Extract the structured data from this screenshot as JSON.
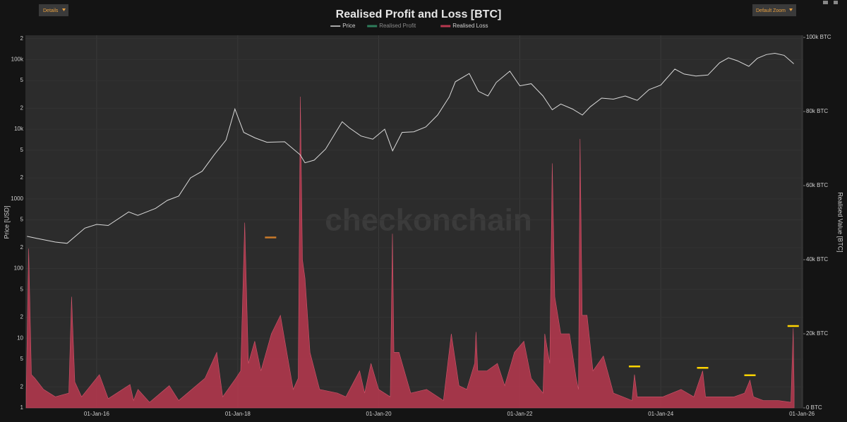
{
  "chart_data": {
    "type": "line",
    "title": "Realised Profit and Loss [BTC]",
    "buttons": [
      "Details",
      "Default Zoom"
    ],
    "watermark": "checkonchain",
    "ylabel": "Price [USD]",
    "y2label": "Realised Value [BTC]",
    "ylog": true,
    "grid": true,
    "legend": "top",
    "xlim": [
      "2014-12-28",
      "2026-01-08"
    ],
    "xticks": [
      {
        "value": "2016-01-01",
        "label": "01-Jan-16"
      },
      {
        "value": "2018-01-01",
        "label": "01-Jan-18"
      },
      {
        "value": "2020-01-01",
        "label": "01-Jan-20"
      },
      {
        "value": "2022-01-01",
        "label": "01-Jan-22"
      },
      {
        "value": "2024-01-01",
        "label": "01-Jan-24"
      },
      {
        "value": "2026-01-01",
        "label": "01-Jan-26"
      }
    ],
    "ylim": [
      1,
      208000
    ],
    "yticks": [
      1,
      2,
      5,
      10,
      {
        "value": 20,
        "label": "2"
      },
      {
        "value": 50,
        "label": "5"
      },
      100,
      {
        "value": 200,
        "label": "2"
      },
      {
        "value": 500,
        "label": "5"
      },
      1000,
      {
        "value": 2000,
        "label": "2"
      },
      {
        "value": 5000,
        "label": "5"
      },
      {
        "value": 10000,
        "label": "10k"
      },
      {
        "value": 20000,
        "label": "2"
      },
      {
        "value": 50000,
        "label": "5"
      },
      {
        "value": 100000,
        "label": "100k"
      },
      {
        "value": 200000,
        "label": "2"
      }
    ],
    "y2lim": [
      0,
      100000
    ],
    "y2ticks": [
      {
        "value": 0,
        "label": "0 BTC"
      },
      {
        "value": 20000,
        "label": "20k BTC"
      },
      {
        "value": 40000,
        "label": "40k BTC"
      },
      {
        "value": 60000,
        "label": "60k BTC"
      },
      {
        "value": 80000,
        "label": "80k BTC"
      },
      {
        "value": 100000,
        "label": "100k BTC"
      }
    ],
    "series": [
      {
        "name": "Price",
        "color": "#d9d9d9",
        "type": "line",
        "x": [
          "2015-01-05",
          "2015-03-01",
          "2015-06-01",
          "2015-08-01",
          "2015-11-01",
          "2016-01-01",
          "2016-03-01",
          "2016-06-15",
          "2016-08-01",
          "2016-11-01",
          "2017-01-01",
          "2017-03-01",
          "2017-05-01",
          "2017-07-01",
          "2017-09-01",
          "2017-11-01",
          "2017-12-17",
          "2018-02-01",
          "2018-04-01",
          "2018-06-01",
          "2018-09-01",
          "2018-11-20",
          "2018-12-15",
          "2019-02-01",
          "2019-04-01",
          "2019-06-26",
          "2019-08-01",
          "2019-10-01",
          "2019-12-01",
          "2020-02-01",
          "2020-03-13",
          "2020-05-01",
          "2020-07-01",
          "2020-09-01",
          "2020-11-01",
          "2020-12-31",
          "2021-02-01",
          "2021-04-14",
          "2021-06-01",
          "2021-07-20",
          "2021-09-01",
          "2021-11-10",
          "2022-01-01",
          "2022-03-01",
          "2022-05-01",
          "2022-06-18",
          "2022-08-01",
          "2022-10-01",
          "2022-11-21",
          "2023-01-01",
          "2023-03-01",
          "2023-05-01",
          "2023-07-01",
          "2023-09-01",
          "2023-11-01",
          "2024-01-01",
          "2024-03-14",
          "2024-05-01",
          "2024-07-01",
          "2024-09-01",
          "2024-11-01",
          "2024-12-17",
          "2025-02-01",
          "2025-04-01",
          "2025-05-15",
          "2025-07-01",
          "2025-08-14",
          "2025-10-01",
          "2025-11-20"
        ],
        "values": [
          290,
          270,
          240,
          230,
          380,
          430,
          415,
          650,
          580,
          730,
          950,
          1100,
          2000,
          2500,
          4300,
          7000,
          19500,
          9000,
          7500,
          6500,
          6600,
          4300,
          3300,
          3600,
          5200,
          12800,
          10500,
          8000,
          7200,
          10000,
          4900,
          9000,
          9200,
          10800,
          16000,
          29000,
          48000,
          63000,
          35000,
          30000,
          47000,
          68000,
          42000,
          45000,
          30000,
          19000,
          23000,
          19500,
          16000,
          21000,
          28000,
          27000,
          30000,
          26000,
          37000,
          43000,
          73000,
          62000,
          58000,
          60000,
          90000,
          106000,
          96000,
          80000,
          104000,
          118000,
          123000,
          115000,
          87000
        ]
      },
      {
        "name": "Realised Profit",
        "color": "#2e7d5b",
        "type": "area",
        "axis": "y2",
        "x": [],
        "values": []
      },
      {
        "name": "Realised Loss",
        "color": "#b8384f",
        "type": "area",
        "axis": "y2",
        "x": [
          "2015-01-01",
          "2015-01-14",
          "2015-01-28",
          "2015-02-15",
          "2015-04-01",
          "2015-06-01",
          "2015-08-10",
          "2015-08-24",
          "2015-09-10",
          "2015-10-15",
          "2016-01-15",
          "2016-03-01",
          "2016-06-22",
          "2016-07-10",
          "2016-08-02",
          "2016-10-01",
          "2017-01-11",
          "2017-03-01",
          "2017-07-15",
          "2017-09-14",
          "2017-10-15",
          "2017-12-22",
          "2018-01-16",
          "2018-02-06",
          "2018-02-25",
          "2018-03-30",
          "2018-05-01",
          "2018-06-24",
          "2018-08-10",
          "2018-10-15",
          "2018-11-10",
          "2018-11-21",
          "2018-12-02",
          "2018-12-15",
          "2019-01-10",
          "2019-03-01",
          "2019-06-01",
          "2019-07-15",
          "2019-09-24",
          "2019-10-20",
          "2019-11-22",
          "2020-01-01",
          "2020-03-01",
          "2020-03-12",
          "2020-03-20",
          "2020-04-15",
          "2020-06-15",
          "2020-09-05",
          "2020-12-01",
          "2021-01-11",
          "2021-02-20",
          "2021-04-01",
          "2021-05-12",
          "2021-05-19",
          "2021-05-28",
          "2021-07-15",
          "2021-09-07",
          "2021-10-15",
          "2021-12-04",
          "2022-01-22",
          "2022-03-01",
          "2022-05-01",
          "2022-05-10",
          "2022-06-05",
          "2022-06-18",
          "2022-07-01",
          "2022-08-01",
          "2022-09-15",
          "2022-10-20",
          "2022-11-01",
          "2022-11-09",
          "2022-11-20",
          "2022-12-15",
          "2023-01-15",
          "2023-03-10",
          "2023-05-01",
          "2023-08-05",
          "2023-08-18",
          "2023-09-01",
          "2023-10-20",
          "2024-01-12",
          "2024-04-15",
          "2024-06-20",
          "2024-08-05",
          "2024-08-20",
          "2024-10-15",
          "2025-01-15",
          "2025-03-10",
          "2025-04-07",
          "2025-04-25",
          "2025-06-15",
          "2025-09-01",
          "2025-11-05",
          "2025-11-17",
          "2025-11-22"
        ],
        "values": [
          4000,
          43000,
          9000,
          8000,
          5000,
          3000,
          4000,
          30000,
          7000,
          3000,
          9000,
          2500,
          6300,
          2000,
          5000,
          1500,
          6000,
          2000,
          8000,
          15000,
          3000,
          8000,
          10000,
          50000,
          12000,
          18000,
          10000,
          20000,
          25000,
          5000,
          8000,
          84000,
          40000,
          35000,
          15000,
          5000,
          4000,
          3000,
          10000,
          4000,
          12000,
          5000,
          3000,
          47000,
          15000,
          15000,
          4000,
          5000,
          2000,
          20000,
          6000,
          5000,
          12000,
          20500,
          10000,
          10000,
          12000,
          6000,
          15000,
          18000,
          8000,
          4000,
          20000,
          12000,
          66000,
          30000,
          20000,
          20000,
          8000,
          5000,
          72600,
          25000,
          25000,
          10000,
          14000,
          4000,
          2000,
          9000,
          3000,
          3000,
          3000,
          5000,
          3000,
          10000,
          3000,
          3000,
          3000,
          4000,
          7500,
          3000,
          2000,
          2000,
          1500,
          21500,
          5000
        ]
      }
    ],
    "highlights": [
      {
        "x": "2018-06-20",
        "value": 46000,
        "color": "#c97a2a"
      },
      {
        "x": "2023-08-18",
        "value": 11200,
        "color": "#ffd400"
      },
      {
        "x": "2024-08-05",
        "value": 10800,
        "color": "#ffd400"
      },
      {
        "x": "2025-04-07",
        "value": 8800,
        "color": "#ffd400"
      },
      {
        "x": "2025-11-17",
        "value": 22100,
        "color": "#ffd400"
      }
    ]
  }
}
